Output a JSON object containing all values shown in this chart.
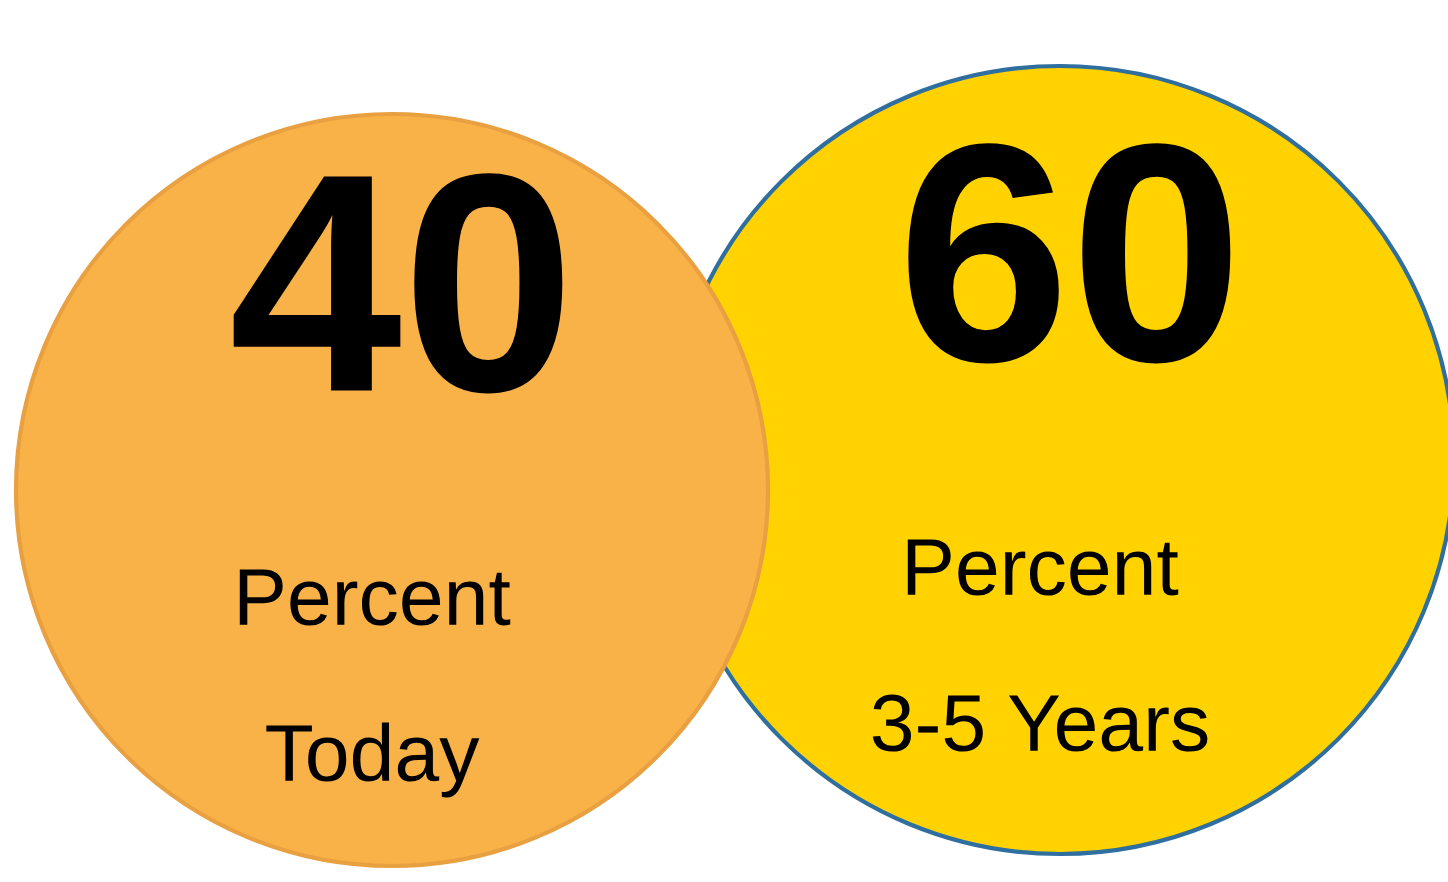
{
  "chart_data": {
    "type": "other",
    "categories": [
      "Today",
      "3-5 Years"
    ],
    "values": [
      40,
      60
    ],
    "data_labels": true,
    "annotations": [
      "Percent",
      "Percent"
    ],
    "colors": [
      "#f9b248",
      "#ffd200"
    ]
  }
}
